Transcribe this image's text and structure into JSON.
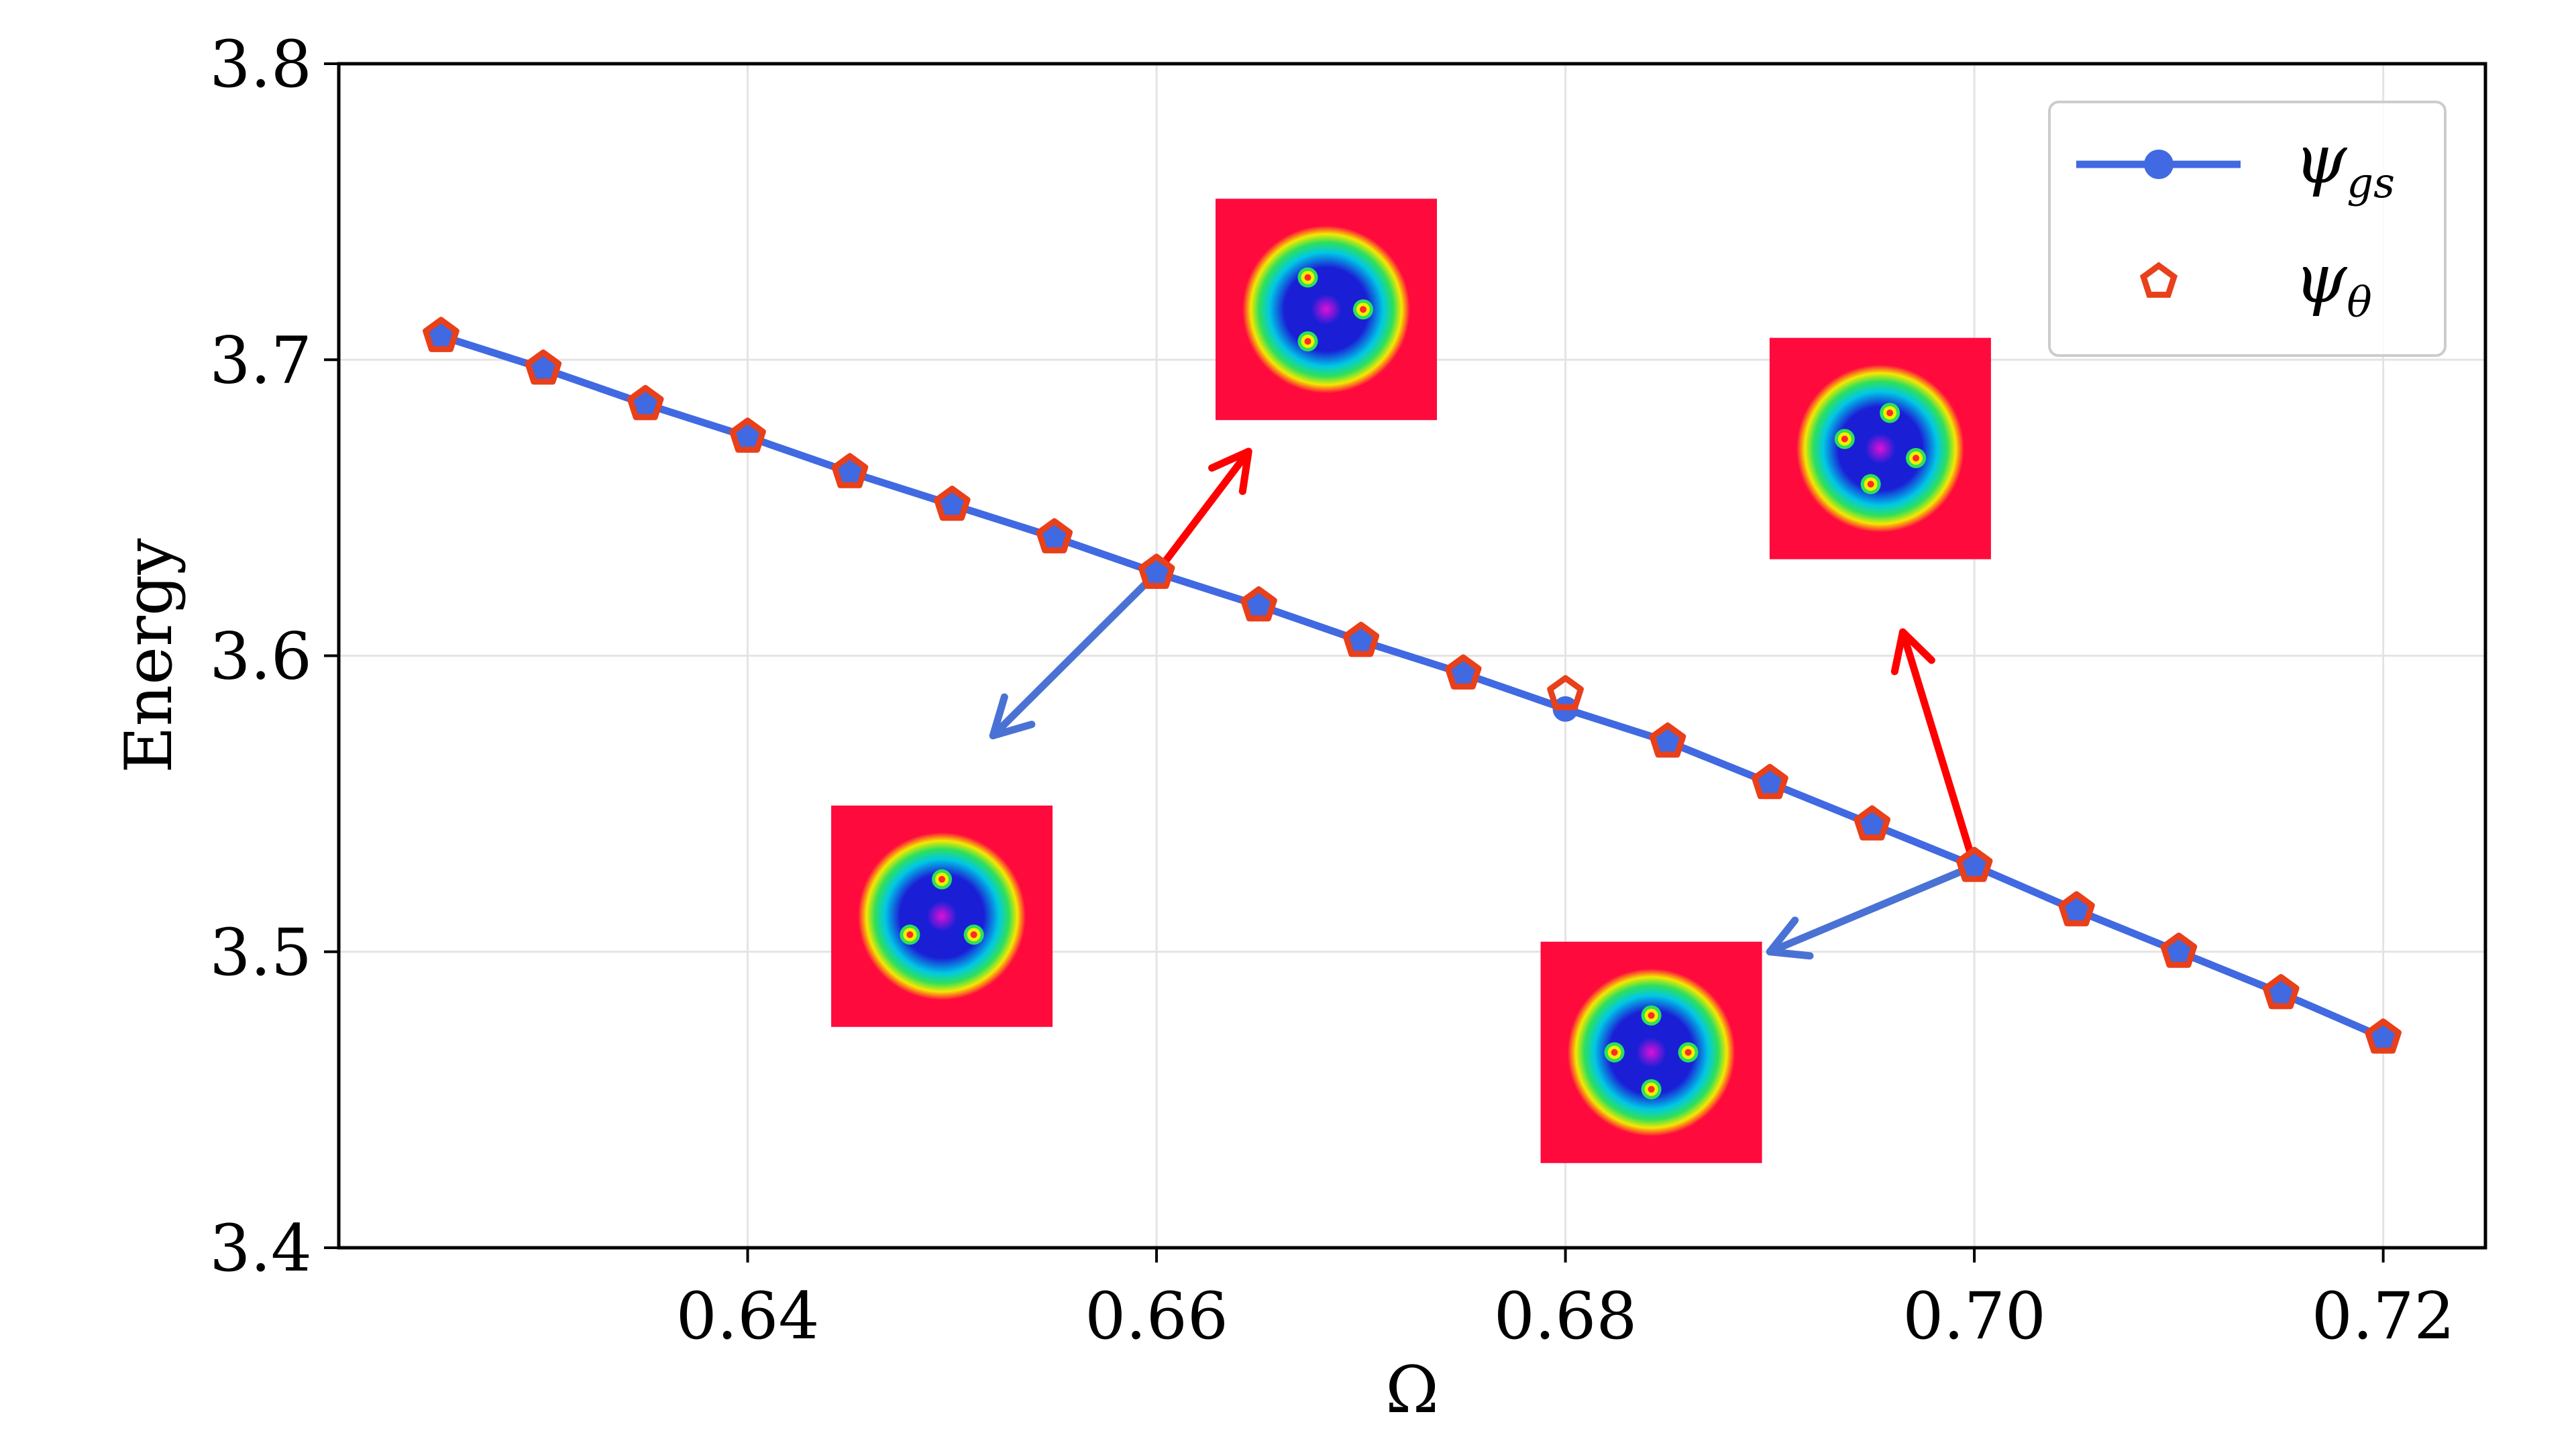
{
  "chart_data": {
    "type": "line",
    "title": "",
    "xlabel": "Ω",
    "ylabel": "Energy",
    "xlim": [
      0.62,
      0.725
    ],
    "ylim": [
      3.4,
      3.8
    ],
    "xticks": [
      0.64,
      0.66,
      0.68,
      0.7,
      0.72
    ],
    "xtick_labels": [
      "0.64",
      "0.66",
      "0.68",
      "0.70",
      "0.72"
    ],
    "yticks": [
      3.4,
      3.5,
      3.6,
      3.7,
      3.8
    ],
    "ytick_labels": [
      "3.4",
      "3.5",
      "3.6",
      "3.7",
      "3.8"
    ],
    "grid": true,
    "legend_position": "top-right",
    "x": [
      0.625,
      0.63,
      0.635,
      0.64,
      0.645,
      0.65,
      0.655,
      0.66,
      0.665,
      0.67,
      0.675,
      0.68,
      0.685,
      0.69,
      0.695,
      0.7,
      0.705,
      0.71,
      0.715,
      0.72
    ],
    "series": [
      {
        "name": "ψ_gs",
        "legend_main": "ψ",
        "legend_sub": "gs",
        "color": "#4169e1",
        "marker": "circle",
        "line": true,
        "values": [
          3.708,
          3.697,
          3.685,
          3.674,
          3.662,
          3.651,
          3.64,
          3.628,
          3.617,
          3.605,
          3.594,
          3.582,
          3.571,
          3.557,
          3.543,
          3.529,
          3.514,
          3.5,
          3.486,
          3.471
        ]
      },
      {
        "name": "ψ_θ",
        "legend_main": "ψ",
        "legend_sub": "θ",
        "color": "#e8401a",
        "marker": "pentagon",
        "line": false,
        "values": [
          3.708,
          3.697,
          3.685,
          3.674,
          3.662,
          3.651,
          3.64,
          3.628,
          3.617,
          3.605,
          3.594,
          3.587,
          3.571,
          3.557,
          3.543,
          3.529,
          3.514,
          3.5,
          3.486,
          3.471
        ]
      }
    ],
    "annotations": [
      {
        "type": "arrow",
        "color": "#ff0000",
        "from": [
          0.66,
          3.628
        ],
        "to": [
          0.6645,
          3.669
        ]
      },
      {
        "type": "arrow",
        "color": "#4a72d4",
        "from": [
          0.66,
          3.628
        ],
        "to": [
          0.652,
          3.573
        ]
      },
      {
        "type": "arrow",
        "color": "#ff0000",
        "from": [
          0.7,
          3.529
        ],
        "to": [
          0.6965,
          3.608
        ]
      },
      {
        "type": "arrow",
        "color": "#4a72d4",
        "from": [
          0.7,
          3.529
        ],
        "to": [
          0.69,
          3.5
        ]
      }
    ],
    "insets": [
      {
        "id": "inset-top-left",
        "center": [
          0.6683,
          3.717
        ],
        "vortices": 3,
        "rotation": -30
      },
      {
        "id": "inset-top-right",
        "center": [
          0.6954,
          3.67
        ],
        "vortices": 4,
        "rotation": 15
      },
      {
        "id": "inset-bottom-left",
        "center": [
          0.6495,
          3.512
        ],
        "vortices": 3,
        "rotation": 0
      },
      {
        "id": "inset-bottom-right",
        "center": [
          0.6842,
          3.466
        ],
        "vortices": 4,
        "rotation": 0
      }
    ],
    "inset_colors": {
      "background": "#ff0a3c",
      "ring_outer": "#f5e800",
      "ring_mid": "#2ee05a",
      "ring_inner": "#00c8e6",
      "core": "#1a1fd6",
      "center": "#e010d8",
      "vortex_core": "#ff2a2a",
      "vortex_ring": "#f0f000"
    }
  }
}
